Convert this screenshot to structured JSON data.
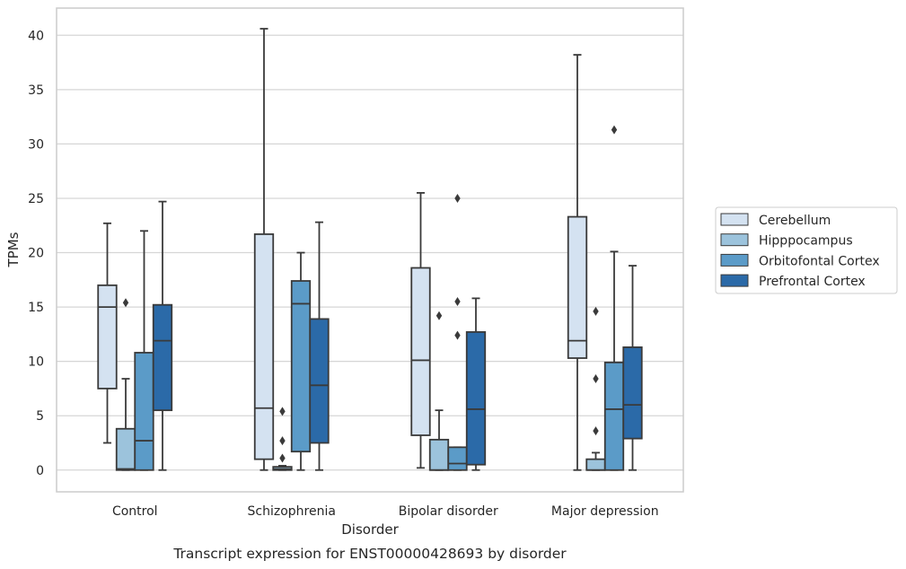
{
  "chart_data": {
    "type": "box",
    "caption": "Transcript expression for ENST00000428693 by disorder",
    "xlabel": "Disorder",
    "ylabel": "TPMs",
    "ylim": [
      -2,
      42.5
    ],
    "yticks": [
      0,
      5,
      10,
      15,
      20,
      25,
      30,
      35,
      40
    ],
    "grid": "horizontal",
    "legend_position": "right",
    "categories": [
      "Control",
      "Schizophrenia",
      "Bipolar disorder",
      "Major depression"
    ],
    "series": [
      {
        "name": "Cerebellum",
        "color": "#d4e2f1",
        "boxes": [
          {
            "whisker_low": 2.5,
            "q1": 7.5,
            "median": 15.0,
            "q3": 17.0,
            "whisker_high": 22.7,
            "outliers": []
          },
          {
            "whisker_low": 0.0,
            "q1": 1.0,
            "median": 5.7,
            "q3": 21.7,
            "whisker_high": 40.6,
            "outliers": []
          },
          {
            "whisker_low": 0.2,
            "q1": 3.2,
            "median": 10.1,
            "q3": 18.6,
            "whisker_high": 25.5,
            "outliers": []
          },
          {
            "whisker_low": 0.0,
            "q1": 10.3,
            "median": 11.9,
            "q3": 23.3,
            "whisker_high": 38.2,
            "outliers": []
          }
        ]
      },
      {
        "name": "Hipppocampus",
        "color": "#9cc3dc",
        "boxes": [
          {
            "whisker_low": 0.0,
            "q1": 0.0,
            "median": 0.1,
            "q3": 3.8,
            "whisker_high": 8.4,
            "outliers": [
              15.4
            ]
          },
          {
            "whisker_low": 0.0,
            "q1": 0.0,
            "median": 0.1,
            "q3": 0.3,
            "whisker_high": 0.4,
            "outliers": [
              1.1,
              2.7,
              5.4
            ]
          },
          {
            "whisker_low": 0.0,
            "q1": 0.0,
            "median": 0.0,
            "q3": 2.8,
            "whisker_high": 5.5,
            "outliers": [
              14.2
            ]
          },
          {
            "whisker_low": 0.0,
            "q1": 0.0,
            "median": 0.0,
            "q3": 1.0,
            "whisker_high": 1.6,
            "outliers": [
              3.6,
              8.4,
              14.6
            ]
          }
        ]
      },
      {
        "name": "Orbitofontal Cortex",
        "color": "#5b9bc8",
        "boxes": [
          {
            "whisker_low": 0.0,
            "q1": 0.0,
            "median": 2.7,
            "q3": 10.8,
            "whisker_high": 22.0,
            "outliers": []
          },
          {
            "whisker_low": 0.0,
            "q1": 1.7,
            "median": 15.3,
            "q3": 17.4,
            "whisker_high": 20.0,
            "outliers": []
          },
          {
            "whisker_low": 0.0,
            "q1": 0.0,
            "median": 0.6,
            "q3": 2.1,
            "whisker_high": 2.1,
            "outliers": [
              12.4,
              15.5,
              25.0
            ]
          },
          {
            "whisker_low": 0.0,
            "q1": 0.0,
            "median": 5.6,
            "q3": 9.9,
            "whisker_high": 20.1,
            "outliers": [
              31.3
            ]
          }
        ]
      },
      {
        "name": "Prefrontal Cortex",
        "color": "#2b6aa8",
        "boxes": [
          {
            "whisker_low": 0.0,
            "q1": 5.5,
            "median": 11.9,
            "q3": 15.2,
            "whisker_high": 24.7,
            "outliers": []
          },
          {
            "whisker_low": 0.0,
            "q1": 2.5,
            "median": 7.8,
            "q3": 13.9,
            "whisker_high": 22.8,
            "outliers": []
          },
          {
            "whisker_low": 0.0,
            "q1": 0.5,
            "median": 5.6,
            "q3": 12.7,
            "whisker_high": 15.8,
            "outliers": []
          },
          {
            "whisker_low": 0.0,
            "q1": 2.9,
            "median": 6.0,
            "q3": 11.3,
            "whisker_high": 18.8,
            "outliers": []
          }
        ]
      }
    ]
  }
}
